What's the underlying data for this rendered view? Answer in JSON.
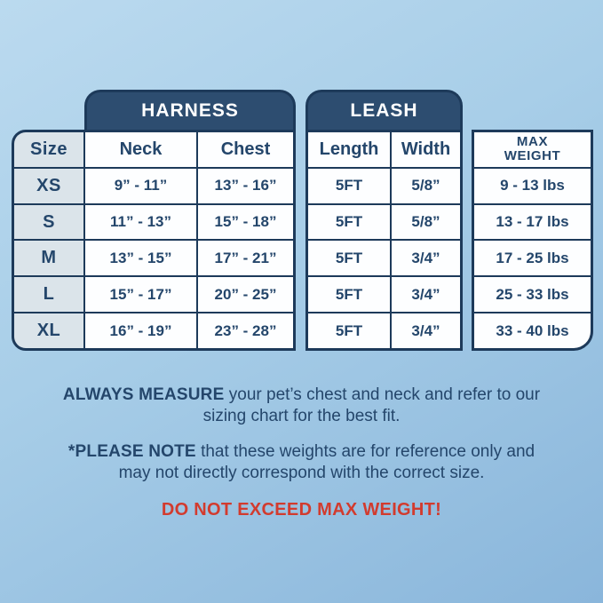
{
  "table": {
    "banners": {
      "harness": "HARNESS",
      "leash": "LEASH"
    },
    "headers": {
      "size": "Size",
      "neck": "Neck",
      "chest": "Chest",
      "length": "Length",
      "width": "Width",
      "max_weight_line1": "MAX",
      "max_weight_line2": "WEIGHT"
    },
    "rows": [
      {
        "size": "XS",
        "neck": "9” - 11”",
        "chest": "13” - 16”",
        "length": "5FT",
        "width": "5/8”",
        "max_weight": "9 - 13 lbs"
      },
      {
        "size": "S",
        "neck": "11” - 13”",
        "chest": "15” - 18”",
        "length": "5FT",
        "width": "5/8”",
        "max_weight": "13 - 17 lbs"
      },
      {
        "size": "M",
        "neck": "13” - 15”",
        "chest": "17” - 21”",
        "length": "5FT",
        "width": "3/4”",
        "max_weight": "17 - 25 lbs"
      },
      {
        "size": "L",
        "neck": "15” - 17”",
        "chest": "20” - 25”",
        "length": "5FT",
        "width": "3/4”",
        "max_weight": "25 - 33 lbs"
      },
      {
        "size": "XL",
        "neck": "16” - 19”",
        "chest": "23” - 28”",
        "length": "5FT",
        "width": "3/4”",
        "max_weight": "33 - 40 lbs"
      }
    ]
  },
  "notes": {
    "measure_bold": "ALWAYS MEASURE",
    "measure_rest": " your pet’s chest and neck and refer to our sizing chart for the best fit.",
    "please_bold": "*PLEASE NOTE",
    "please_rest": " that these weights are for reference only and may not directly correspond with the correct size.",
    "warning": "DO NOT EXCEED MAX WEIGHT!"
  },
  "colors": {
    "navy_text": "#24466b",
    "grid_line": "#1d3a5a",
    "banner_bg": "#2d4d70",
    "size_column_bg": "#dbe4ea",
    "cell_bg": "#fdfeff",
    "warning_red": "#d23b2e",
    "background_top": "#bbdaef",
    "background_bottom": "#8ab6db"
  }
}
